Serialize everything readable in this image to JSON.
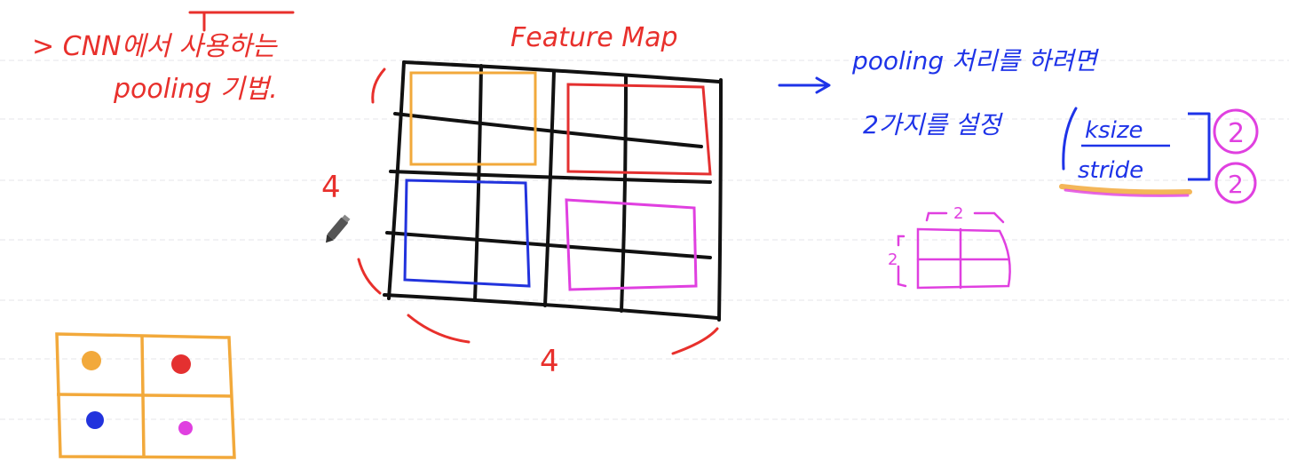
{
  "notes": {
    "cnn_line1": "> CNN에서 사용하는",
    "cnn_line2": "pooling 기법.",
    "feature_map_title": "Feature Map",
    "dim_height": "4",
    "dim_width": "4",
    "arrow": "→",
    "pooling_line": "pooling 처리를 하려면",
    "settings_line": "2가지를 설정",
    "param_ksize": "ksize",
    "param_stride": "stride",
    "param_ksize_value": "2",
    "param_stride_value": "2",
    "kernel_width": "2",
    "kernel_height": "2"
  },
  "colors": {
    "red_ink": "#e8302c",
    "blue_ink": "#1e33e8",
    "black_ink": "#111111",
    "orange": "#f2a93b",
    "red": "#e43030",
    "blue": "#2233dd",
    "magenta": "#e040e0",
    "rule_line": "#e6e6ea"
  },
  "pooled_output": {
    "cells": [
      {
        "position": "top-left",
        "color": "orange"
      },
      {
        "position": "top-right",
        "color": "red"
      },
      {
        "position": "bottom-left",
        "color": "blue"
      },
      {
        "position": "bottom-right",
        "color": "magenta"
      }
    ]
  }
}
